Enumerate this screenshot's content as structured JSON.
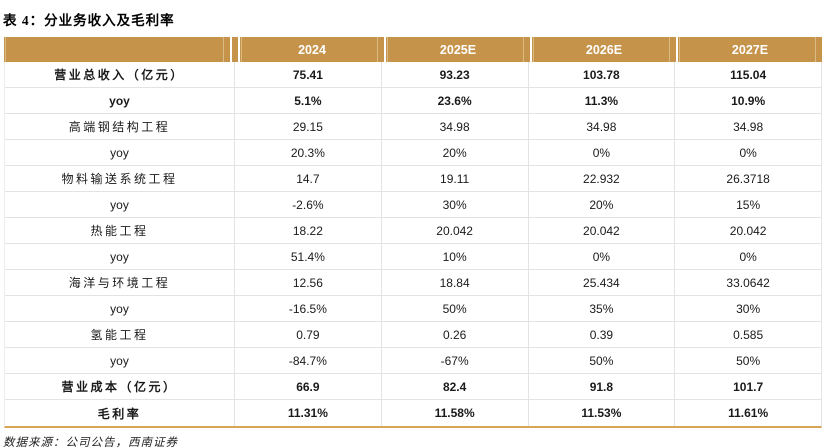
{
  "title": "表 4：分业务收入及毛利率",
  "source_note": "数据来源：公司公告，西南证券",
  "colors": {
    "header_bg": "#C6934B",
    "header_stripe": "#DABB84",
    "header_text": "#FFFFFF",
    "bottom_border": "#DBA558",
    "grid_line": "#E3E3E3"
  },
  "table": {
    "columns": [
      "",
      "2024",
      "2025E",
      "2026E",
      "2027E"
    ],
    "rows": [
      {
        "label": "营业总收入（亿元）",
        "values": [
          "75.41",
          "93.23",
          "103.78",
          "115.04"
        ],
        "bold": true
      },
      {
        "label": "yoy",
        "values": [
          "5.1%",
          "23.6%",
          "11.3%",
          "10.9%"
        ],
        "bold": true
      },
      {
        "label": "高端钢结构工程",
        "values": [
          "29.15",
          "34.98",
          "34.98",
          "34.98"
        ],
        "bold": false
      },
      {
        "label": "yoy",
        "values": [
          "20.3%",
          "20%",
          "0%",
          "0%"
        ],
        "bold": false
      },
      {
        "label": "物料输送系统工程",
        "values": [
          "14.7",
          "19.11",
          "22.932",
          "26.3718"
        ],
        "bold": false
      },
      {
        "label": "yoy",
        "values": [
          "-2.6%",
          "30%",
          "20%",
          "15%"
        ],
        "bold": false
      },
      {
        "label": "热能工程",
        "values": [
          "18.22",
          "20.042",
          "20.042",
          "20.042"
        ],
        "bold": false
      },
      {
        "label": "yoy",
        "values": [
          "51.4%",
          "10%",
          "0%",
          "0%"
        ],
        "bold": false
      },
      {
        "label": "海洋与环境工程",
        "values": [
          "12.56",
          "18.84",
          "25.434",
          "33.0642"
        ],
        "bold": false
      },
      {
        "label": "yoy",
        "values": [
          "-16.5%",
          "50%",
          "35%",
          "30%"
        ],
        "bold": false
      },
      {
        "label": "氢能工程",
        "values": [
          "0.79",
          "0.26",
          "0.39",
          "0.585"
        ],
        "bold": false
      },
      {
        "label": "yoy",
        "values": [
          "-84.7%",
          "-67%",
          "50%",
          "50%"
        ],
        "bold": false
      },
      {
        "label": "营业成本（亿元）",
        "values": [
          "66.9",
          "82.4",
          "91.8",
          "101.7"
        ],
        "bold": true
      },
      {
        "label": "毛利率",
        "values": [
          "11.31%",
          "11.58%",
          "11.53%",
          "11.61%"
        ],
        "bold": true
      }
    ]
  }
}
